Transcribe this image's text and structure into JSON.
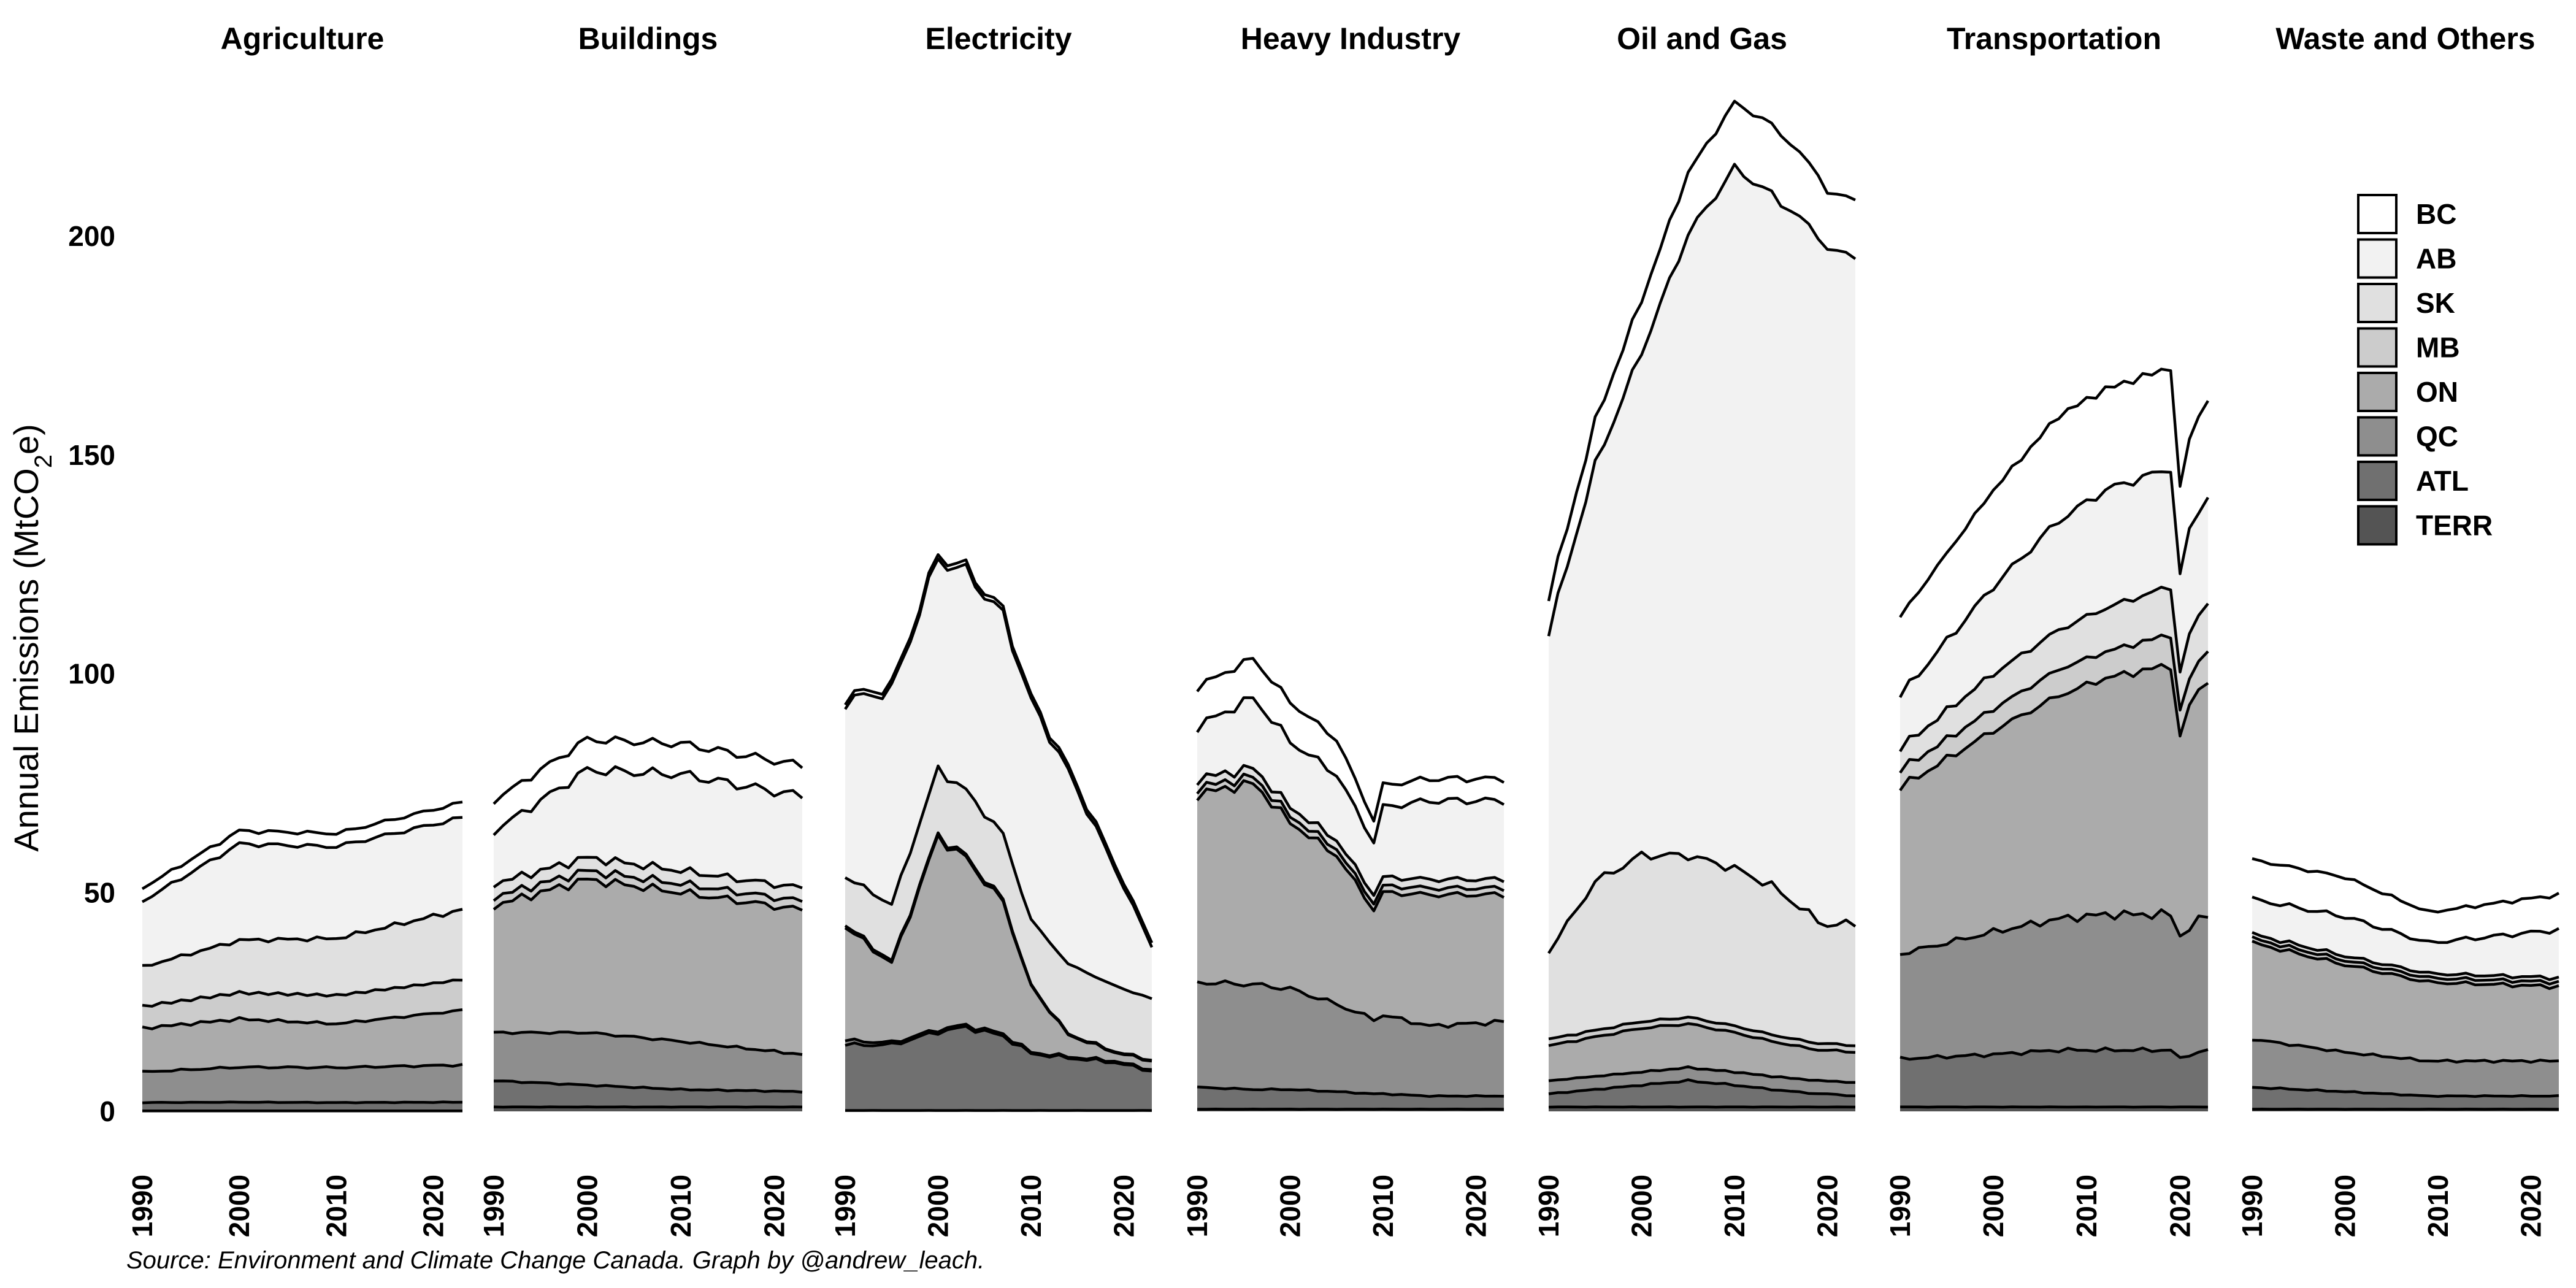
{
  "chart_data": {
    "type": "area",
    "stacked": true,
    "ylabel": "Annual Emissions  (MtCO2e)",
    "ylim": [
      0,
      230
    ],
    "y_ticks": [
      0,
      50,
      100,
      150,
      200
    ],
    "x_ticks": [
      1990,
      2000,
      2010,
      2020
    ],
    "x_range": [
      1990,
      2023
    ],
    "legend": {
      "placement": "top-right",
      "items": [
        {
          "name": "BC",
          "color": "#ffffff"
        },
        {
          "name": "AB",
          "color": "#f2f2f2"
        },
        {
          "name": "SK",
          "color": "#e0e0e0"
        },
        {
          "name": "MB",
          "color": "#cccccc"
        },
        {
          "name": "ON",
          "color": "#ababab"
        },
        {
          "name": "QC",
          "color": "#8e8e8e"
        },
        {
          "name": "ATL",
          "color": "#707070"
        },
        {
          "name": "TERR",
          "color": "#545454"
        }
      ]
    },
    "stack_order_bottom_to_top": [
      "TERR",
      "ATL",
      "QC",
      "ON",
      "MB",
      "SK",
      "AB",
      "BC"
    ],
    "panels": [
      {
        "title": "Agriculture",
        "anchors": [
          1990,
          2000,
          2010,
          2023
        ],
        "series": {
          "TERR": [
            0.1,
            0.1,
            0.1,
            0.1
          ],
          "ATL": [
            1.9,
            2.0,
            1.9,
            2.0
          ],
          "QC": [
            7.0,
            8.0,
            8.0,
            8.5
          ],
          "ON": [
            10.0,
            11.0,
            10.0,
            12.5
          ],
          "MB": [
            5.0,
            6.0,
            6.5,
            7.0
          ],
          "SK": [
            9.0,
            12.0,
            13.0,
            16.0
          ],
          "AB": [
            15.0,
            22.0,
            21.0,
            21.0
          ],
          "BC": [
            3.0,
            3.0,
            3.0,
            3.5
          ]
        }
      },
      {
        "title": "Buildings",
        "anchors": [
          1990,
          2000,
          2010,
          2023
        ],
        "series": {
          "TERR": [
            1.0,
            1.0,
            1.0,
            1.0
          ],
          "ATL": [
            6.0,
            5.0,
            4.0,
            3.5
          ],
          "QC": [
            11.0,
            12.0,
            11.0,
            8.5
          ],
          "ON": [
            29.0,
            35.0,
            34.0,
            33.0
          ],
          "MB": [
            2.0,
            2.0,
            2.0,
            2.0
          ],
          "SK": [
            3.0,
            3.0,
            3.0,
            3.0
          ],
          "AB": [
            12.0,
            20.0,
            22.0,
            21.0
          ],
          "BC": [
            7.0,
            7.0,
            7.0,
            7.0
          ]
        }
      },
      {
        "title": "Electricity",
        "anchors": [
          1990,
          1995,
          2000,
          2003,
          2007,
          2010,
          2014,
          2019,
          2023
        ],
        "series": {
          "TERR": [
            0.2,
            0.2,
            0.2,
            0.2,
            0.2,
            0.2,
            0.2,
            0.2,
            0.2
          ],
          "ATL": [
            15.0,
            15.0,
            18.0,
            19.0,
            17.0,
            13.0,
            12.0,
            11.0,
            9.0
          ],
          "QC": [
            1.0,
            0.5,
            0.5,
            0.5,
            0.5,
            0.3,
            0.3,
            0.3,
            0.3
          ],
          "ON": [
            26.0,
            18.0,
            44.0,
            38.0,
            30.0,
            15.0,
            5.0,
            2.0,
            2.0
          ],
          "MB": [
            0.5,
            0.5,
            0.5,
            0.5,
            0.5,
            0.2,
            0.2,
            0.2,
            0.2
          ],
          "SK": [
            11.0,
            13.0,
            15.0,
            15.0,
            15.0,
            15.0,
            16.0,
            15.0,
            14.0
          ],
          "AB": [
            40.0,
            49.0,
            48.0,
            50.0,
            50.0,
            50.0,
            44.0,
            27.0,
            12.0
          ],
          "BC": [
            1.0,
            1.0,
            1.0,
            1.0,
            1.0,
            1.0,
            1.0,
            1.0,
            1.0
          ]
        }
      },
      {
        "title": "Heavy Industry",
        "anchors": [
          1990,
          1996,
          2000,
          2005,
          2009,
          2010,
          2015,
          2023
        ],
        "series": {
          "TERR": [
            0.5,
            0.5,
            0.5,
            0.5,
            0.5,
            0.5,
            0.5,
            0.5
          ],
          "ATL": [
            5.0,
            4.5,
            4.5,
            4.0,
            3.5,
            3.5,
            3.0,
            3.0
          ],
          "QC": [
            24.0,
            24.0,
            23.0,
            20.0,
            17.0,
            18.0,
            16.0,
            17.0
          ],
          "ON": [
            43.0,
            46.0,
            38.0,
            34.0,
            25.0,
            28.0,
            30.0,
            29.0
          ],
          "MB": [
            1.5,
            1.5,
            1.5,
            1.5,
            1.5,
            1.5,
            1.5,
            1.5
          ],
          "SK": [
            2.0,
            2.0,
            2.0,
            2.0,
            2.0,
            2.0,
            2.0,
            2.0
          ],
          "AB": [
            12.0,
            16.0,
            15.0,
            15.0,
            12.0,
            16.0,
            18.0,
            18.0
          ],
          "BC": [
            9.0,
            9.0,
            9.0,
            8.0,
            5.0,
            5.0,
            5.0,
            5.0
          ]
        }
      },
      {
        "title": "Oil and Gas",
        "anchors": [
          1990,
          1995,
          2000,
          2005,
          2010,
          2014,
          2019,
          2020,
          2023
        ],
        "series": {
          "TERR": [
            1.0,
            1.0,
            1.0,
            1.0,
            1.0,
            1.0,
            1.0,
            1.0,
            1.0
          ],
          "ATL": [
            3.0,
            4.0,
            5.0,
            6.0,
            5.0,
            4.0,
            3.0,
            3.0,
            2.5
          ],
          "QC": [
            3.0,
            3.0,
            3.0,
            3.0,
            3.0,
            3.0,
            3.0,
            3.0,
            3.0
          ],
          "ON": [
            8.0,
            9.0,
            10.0,
            10.0,
            9.0,
            8.0,
            7.0,
            7.0,
            7.0
          ],
          "MB": [
            1.5,
            1.5,
            1.5,
            1.5,
            1.5,
            1.5,
            1.5,
            1.5,
            1.5
          ],
          "SK": [
            20.0,
            34.0,
            38.0,
            37.0,
            36.0,
            34.0,
            28.0,
            27.0,
            28.0
          ],
          "AB": [
            73.0,
            95.0,
            115.0,
            142.0,
            160.0,
            158.0,
            157.0,
            154.0,
            153.0
          ],
          "BC": [
            8.0,
            10.0,
            12.0,
            14.0,
            15.0,
            16.0,
            14.0,
            13.0,
            13.0
          ]
        }
      },
      {
        "title": "Transportation",
        "anchors": [
          1990,
          2000,
          2007,
          2012,
          2019,
          2020,
          2021,
          2023
        ],
        "series": {
          "TERR": [
            1.0,
            1.0,
            1.0,
            1.0,
            1.0,
            1.0,
            1.0,
            1.0
          ],
          "ATL": [
            11.0,
            12.0,
            13.0,
            13.0,
            13.0,
            11.0,
            12.0,
            13.0
          ],
          "QC": [
            24.0,
            28.0,
            30.0,
            31.0,
            31.0,
            28.0,
            29.0,
            31.0
          ],
          "ON": [
            38.0,
            46.0,
            51.0,
            54.0,
            57.0,
            45.0,
            51.0,
            54.0
          ],
          "MB": [
            4.0,
            5.0,
            6.0,
            6.0,
            7.0,
            6.0,
            6.0,
            7.0
          ],
          "SK": [
            5.0,
            8.0,
            9.0,
            10.0,
            11.0,
            9.0,
            10.0,
            11.0
          ],
          "AB": [
            12.0,
            20.0,
            25.0,
            27.0,
            27.0,
            22.0,
            24.0,
            24.0
          ],
          "BC": [
            18.0,
            22.0,
            24.0,
            23.0,
            23.0,
            20.0,
            21.0,
            22.0
          ]
        }
      },
      {
        "title": "Waste and Others",
        "anchors": [
          1990,
          2000,
          2009,
          2023
        ],
        "series": {
          "TERR": [
            0.5,
            0.5,
            0.5,
            0.5
          ],
          "ATL": [
            5.0,
            4.0,
            3.0,
            3.0
          ],
          "QC": [
            11.0,
            9.0,
            8.0,
            8.0
          ],
          "ON": [
            22.0,
            20.0,
            18.0,
            17.0
          ],
          "MB": [
            1.0,
            1.0,
            1.0,
            1.0
          ],
          "SK": [
            1.0,
            1.0,
            1.0,
            1.0
          ],
          "AB": [
            8.0,
            9.0,
            7.0,
            11.0
          ],
          "BC": [
            9.0,
            9.0,
            7.0,
            8.0
          ]
        }
      }
    ]
  },
  "source_note": "Source: Environment and Climate Change Canada. Graph by @andrew_leach."
}
